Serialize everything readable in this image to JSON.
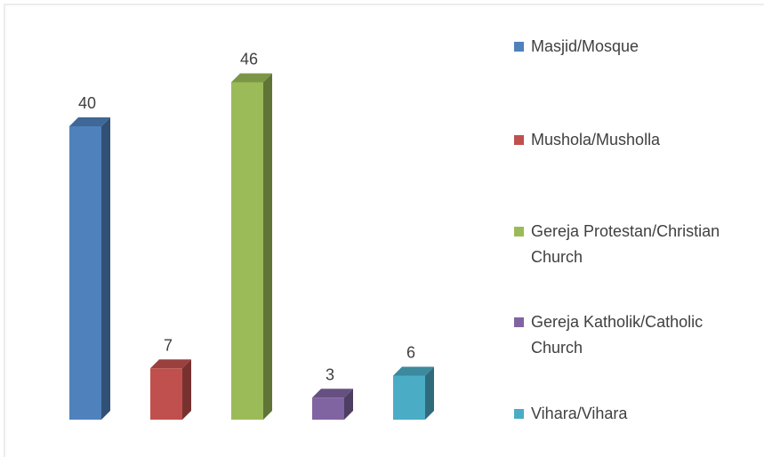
{
  "chart_data": {
    "type": "bar",
    "categories": [
      "Masjid/Mosque",
      "Mushola/Musholla",
      "Gereja Protestan/Christian Church",
      "Gereja Katholik/Catholic Church",
      "Vihara/Vihara"
    ],
    "values": [
      40,
      7,
      46,
      3,
      6
    ],
    "colors": [
      "#4f81bd",
      "#c0504d",
      "#9bbb59",
      "#8064a2",
      "#4bacc6"
    ],
    "legend": "right"
  }
}
